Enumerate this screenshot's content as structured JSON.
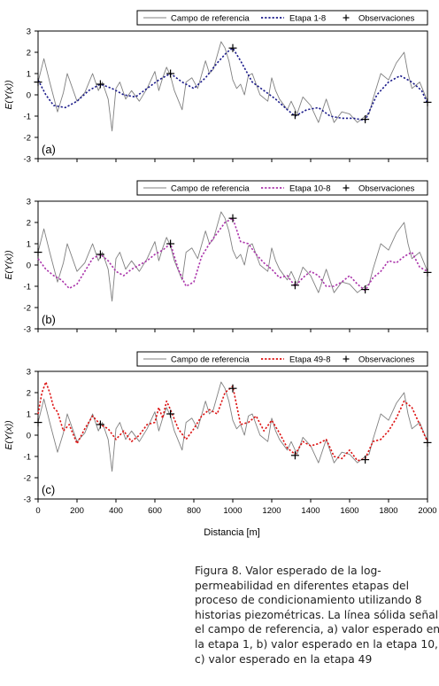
{
  "figure": {
    "xlabel": "Distancia [m]",
    "ylabel": "E(Y(x))",
    "caption_lines": [
      "Figura 8. Valor esperado de la log-",
      "permeabilidad en diferentes etapas del",
      "proceso de condicionamiento utilizando 8",
      "historias piezométricas. La línea sólida señala",
      "el campo de referencia, a) valor esperado en",
      "la etapa 1, b) valor esperado en la etapa 10,",
      "c) valor esperado en la etapa 49"
    ]
  },
  "chart_data": [
    {
      "type": "line",
      "panel_label": "(a)",
      "xlim": [
        0,
        2000
      ],
      "ylim": [
        -3,
        3
      ],
      "yticks": [
        3,
        2,
        1,
        0,
        -1,
        -2,
        -3
      ],
      "xticks": [
        0,
        200,
        400,
        600,
        800,
        1000,
        1200,
        1400,
        1600,
        1800,
        2000
      ],
      "show_xtick_labels": false,
      "legend_placement": "top-right",
      "grid": false,
      "series": [
        {
          "name": "Campo de referencia",
          "color": "#808080",
          "style": "solid",
          "x": [
            0,
            30,
            60,
            100,
            130,
            150,
            200,
            240,
            280,
            310,
            330,
            360,
            380,
            400,
            420,
            450,
            480,
            520,
            560,
            600,
            620,
            640,
            660,
            680,
            700,
            740,
            760,
            790,
            820,
            860,
            880,
            900,
            940,
            960,
            980,
            1000,
            1020,
            1040,
            1060,
            1080,
            1100,
            1140,
            1180,
            1200,
            1220,
            1240,
            1280,
            1300,
            1330,
            1360,
            1400,
            1440,
            1480,
            1520,
            1560,
            1600,
            1640,
            1680,
            1700,
            1720,
            1760,
            1800,
            1840,
            1880,
            1900,
            1920,
            1960,
            2000
          ],
          "y": [
            0.6,
            1.7,
            0.6,
            -0.8,
            0.1,
            1.0,
            -0.3,
            0.1,
            1.0,
            0.2,
            0.6,
            -0.2,
            -1.7,
            0.3,
            0.6,
            -0.2,
            0.2,
            -0.3,
            0.3,
            1.1,
            0.2,
            0.8,
            1.3,
            0.9,
            0.2,
            -0.7,
            0.6,
            0.8,
            0.3,
            1.6,
            1.0,
            1.2,
            2.5,
            2.2,
            1.6,
            0.7,
            0.3,
            0.5,
            0.0,
            0.9,
            1.0,
            0.0,
            -0.3,
            0.8,
            0.2,
            -0.2,
            -0.7,
            -0.3,
            -0.9,
            -0.1,
            -0.5,
            -1.3,
            -0.2,
            -1.3,
            -0.8,
            -0.9,
            -1.3,
            -1.0,
            -0.9,
            -0.2,
            1.0,
            0.7,
            1.5,
            2.0,
            1.0,
            0.3,
            0.6,
            -0.3
          ]
        },
        {
          "name": "Etapa 1-8",
          "color": "#1a1a8a",
          "style": "dotted",
          "x": [
            0,
            40,
            80,
            140,
            200,
            260,
            320,
            380,
            440,
            500,
            560,
            620,
            680,
            740,
            800,
            860,
            920,
            970,
            1000,
            1040,
            1100,
            1160,
            1220,
            1280,
            1320,
            1380,
            1440,
            1500,
            1560,
            1620,
            1680,
            1740,
            1800,
            1860,
            1920,
            1970,
            2000
          ],
          "y": [
            0.7,
            0.0,
            -0.5,
            -0.6,
            -0.3,
            0.2,
            0.5,
            0.3,
            0.0,
            -0.1,
            0.3,
            0.7,
            1.0,
            0.6,
            0.3,
            0.8,
            1.5,
            2.0,
            2.2,
            1.6,
            0.6,
            0.2,
            -0.2,
            -0.7,
            -1.0,
            -0.7,
            -0.6,
            -1.0,
            -1.1,
            -1.1,
            -1.2,
            0.0,
            0.6,
            0.9,
            0.6,
            0.2,
            -0.4
          ]
        },
        {
          "name": "Observaciones",
          "color": "#000000",
          "style": "marker",
          "x": [
            0,
            320,
            680,
            1000,
            1320,
            1680,
            2000
          ],
          "y": [
            0.6,
            0.5,
            1.0,
            2.2,
            -0.95,
            -1.15,
            -0.35
          ]
        }
      ]
    },
    {
      "type": "line",
      "panel_label": "(b)",
      "xlim": [
        0,
        2000
      ],
      "ylim": [
        -3,
        3
      ],
      "yticks": [
        3,
        2,
        1,
        0,
        -1,
        -2,
        -3
      ],
      "xticks": [
        0,
        200,
        400,
        600,
        800,
        1000,
        1200,
        1400,
        1600,
        1800,
        2000
      ],
      "show_xtick_labels": false,
      "legend_placement": "top-right",
      "grid": false,
      "series": [
        {
          "name": "Campo de referencia",
          "color": "#808080",
          "style": "solid",
          "x": [
            0,
            30,
            60,
            100,
            130,
            150,
            200,
            240,
            280,
            310,
            330,
            360,
            380,
            400,
            420,
            450,
            480,
            520,
            560,
            600,
            620,
            640,
            660,
            680,
            700,
            740,
            760,
            790,
            820,
            860,
            880,
            900,
            940,
            960,
            980,
            1000,
            1020,
            1040,
            1060,
            1080,
            1100,
            1140,
            1180,
            1200,
            1220,
            1240,
            1280,
            1300,
            1330,
            1360,
            1400,
            1440,
            1480,
            1520,
            1560,
            1600,
            1640,
            1680,
            1700,
            1720,
            1760,
            1800,
            1840,
            1880,
            1900,
            1920,
            1960,
            2000
          ],
          "y": [
            0.6,
            1.7,
            0.6,
            -0.8,
            0.1,
            1.0,
            -0.3,
            0.1,
            1.0,
            0.2,
            0.6,
            -0.2,
            -1.7,
            0.3,
            0.6,
            -0.2,
            0.2,
            -0.3,
            0.3,
            1.1,
            0.2,
            0.8,
            1.3,
            0.9,
            0.2,
            -0.7,
            0.6,
            0.8,
            0.3,
            1.6,
            1.0,
            1.2,
            2.5,
            2.2,
            1.6,
            0.7,
            0.3,
            0.5,
            0.0,
            0.9,
            1.0,
            0.0,
            -0.3,
            0.8,
            0.2,
            -0.2,
            -0.7,
            -0.3,
            -0.9,
            -0.1,
            -0.5,
            -1.3,
            -0.2,
            -1.3,
            -0.8,
            -0.9,
            -1.3,
            -1.0,
            -0.9,
            -0.2,
            1.0,
            0.7,
            1.5,
            2.0,
            1.0,
            0.3,
            0.6,
            -0.3
          ]
        },
        {
          "name": "Etapa 10-8",
          "color": "#aa33aa",
          "style": "dotted",
          "x": [
            0,
            40,
            80,
            120,
            160,
            200,
            240,
            280,
            320,
            360,
            400,
            440,
            480,
            520,
            560,
            600,
            640,
            680,
            720,
            760,
            800,
            840,
            880,
            920,
            960,
            1000,
            1040,
            1080,
            1120,
            1160,
            1200,
            1240,
            1280,
            1320,
            1360,
            1400,
            1440,
            1480,
            1520,
            1560,
            1600,
            1640,
            1680,
            1720,
            1760,
            1800,
            1840,
            1880,
            1920,
            1960,
            2000
          ],
          "y": [
            0.3,
            -0.2,
            -0.5,
            -0.7,
            -1.1,
            -0.9,
            -0.3,
            0.3,
            0.5,
            0.2,
            -0.3,
            -0.5,
            -0.2,
            0.0,
            0.2,
            0.5,
            0.7,
            1.0,
            -0.2,
            -1.0,
            -0.8,
            0.4,
            1.0,
            1.5,
            2.0,
            2.2,
            1.1,
            1.0,
            0.5,
            0.1,
            -0.2,
            -0.6,
            -0.5,
            -1.0,
            -0.6,
            -0.3,
            -0.5,
            -1.0,
            -1.0,
            -0.8,
            -0.5,
            -0.9,
            -1.2,
            -0.6,
            -0.3,
            0.2,
            0.1,
            0.4,
            0.6,
            -0.1,
            -0.3
          ]
        },
        {
          "name": "Observaciones",
          "color": "#000000",
          "style": "marker",
          "x": [
            0,
            320,
            680,
            1000,
            1320,
            1680,
            2000
          ],
          "y": [
            0.6,
            0.5,
            1.0,
            2.2,
            -0.95,
            -1.15,
            -0.35
          ]
        }
      ]
    },
    {
      "type": "line",
      "panel_label": "(c)",
      "xlim": [
        0,
        2000
      ],
      "ylim": [
        -3,
        3
      ],
      "yticks": [
        3,
        2,
        1,
        0,
        -1,
        -2,
        -3
      ],
      "xticks": [
        0,
        200,
        400,
        600,
        800,
        1000,
        1200,
        1400,
        1600,
        1800,
        2000
      ],
      "show_xtick_labels": true,
      "legend_placement": "top-right",
      "grid": false,
      "series": [
        {
          "name": "Campo de referencia",
          "color": "#808080",
          "style": "solid",
          "x": [
            0,
            30,
            60,
            100,
            130,
            150,
            200,
            240,
            280,
            310,
            330,
            360,
            380,
            400,
            420,
            450,
            480,
            520,
            560,
            600,
            620,
            640,
            660,
            680,
            700,
            740,
            760,
            790,
            820,
            860,
            880,
            900,
            940,
            960,
            980,
            1000,
            1020,
            1040,
            1060,
            1080,
            1100,
            1140,
            1180,
            1200,
            1220,
            1240,
            1280,
            1300,
            1330,
            1360,
            1400,
            1440,
            1480,
            1520,
            1560,
            1600,
            1640,
            1680,
            1700,
            1720,
            1760,
            1800,
            1840,
            1880,
            1900,
            1920,
            1960,
            2000
          ],
          "y": [
            0.6,
            1.7,
            0.6,
            -0.8,
            0.1,
            1.0,
            -0.3,
            0.1,
            1.0,
            0.2,
            0.6,
            -0.2,
            -1.7,
            0.3,
            0.6,
            -0.2,
            0.2,
            -0.3,
            0.3,
            1.1,
            0.2,
            0.8,
            1.3,
            0.9,
            0.2,
            -0.7,
            0.6,
            0.8,
            0.3,
            1.6,
            1.0,
            1.2,
            2.5,
            2.2,
            1.6,
            0.7,
            0.3,
            0.5,
            0.0,
            0.9,
            1.0,
            0.0,
            -0.3,
            0.8,
            0.2,
            -0.2,
            -0.7,
            -0.3,
            -0.9,
            -0.1,
            -0.5,
            -1.3,
            -0.2,
            -1.3,
            -0.8,
            -0.9,
            -1.3,
            -1.0,
            -0.9,
            -0.2,
            1.0,
            0.7,
            1.5,
            2.0,
            1.0,
            0.3,
            0.6,
            -0.3
          ]
        },
        {
          "name": "Etapa 49-8",
          "color": "#dd1111",
          "style": "dotted",
          "x": [
            0,
            20,
            40,
            60,
            80,
            100,
            130,
            160,
            200,
            240,
            280,
            320,
            360,
            400,
            440,
            480,
            520,
            560,
            600,
            620,
            640,
            660,
            680,
            720,
            760,
            800,
            840,
            880,
            920,
            960,
            1000,
            1040,
            1080,
            1120,
            1160,
            1200,
            1240,
            1280,
            1320,
            1360,
            1400,
            1440,
            1480,
            1520,
            1560,
            1600,
            1640,
            1680,
            1720,
            1760,
            1800,
            1840,
            1880,
            1920,
            1960,
            2000
          ],
          "y": [
            1.0,
            2.0,
            2.5,
            2.0,
            1.3,
            1.1,
            0.2,
            0.5,
            -0.4,
            0.3,
            0.9,
            0.5,
            0.3,
            -0.2,
            0.2,
            -0.3,
            0.0,
            0.5,
            0.6,
            1.3,
            0.8,
            1.6,
            1.2,
            0.3,
            -0.2,
            0.3,
            0.9,
            1.2,
            1.0,
            2.0,
            2.3,
            0.5,
            0.6,
            0.9,
            0.2,
            0.7,
            0.1,
            -0.6,
            -0.9,
            -0.3,
            -0.5,
            -0.4,
            -0.2,
            -1.0,
            -1.1,
            -0.7,
            -1.2,
            -1.1,
            -0.3,
            -0.2,
            0.2,
            0.8,
            1.6,
            1.3,
            0.5,
            -0.3
          ]
        },
        {
          "name": "Observaciones",
          "color": "#000000",
          "style": "marker",
          "x": [
            0,
            320,
            680,
            1000,
            1320,
            1680,
            2000
          ],
          "y": [
            0.6,
            0.5,
            1.0,
            2.2,
            -0.95,
            -1.15,
            -0.35
          ]
        }
      ]
    }
  ]
}
